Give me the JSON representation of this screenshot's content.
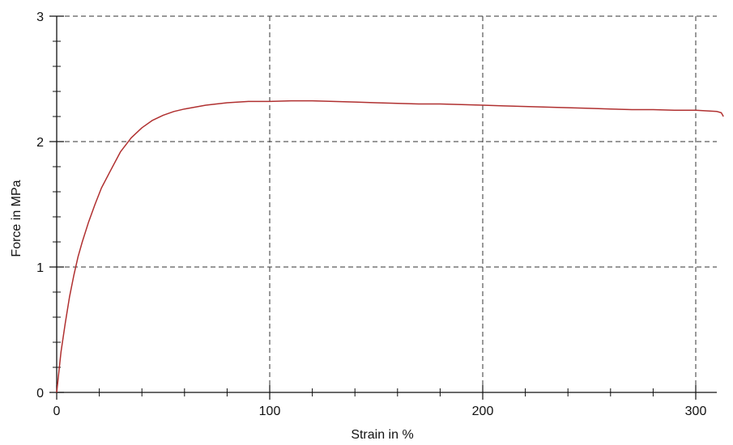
{
  "chart_data": {
    "type": "line",
    "title": "",
    "xlabel": "Strain in %",
    "ylabel": "Force in MPa",
    "xlim": [
      0,
      315
    ],
    "ylim": [
      0,
      3
    ],
    "x_ticks": [
      0,
      100,
      200,
      300
    ],
    "y_ticks": [
      0,
      1,
      2,
      3
    ],
    "x_tick_labels": [
      "0",
      "100",
      "200",
      "300"
    ],
    "y_tick_labels": [
      "0",
      "1",
      "2",
      "3"
    ],
    "x_minor_step": 20,
    "y_minor_step": 0.2,
    "grid": true,
    "grid_style": "dashed",
    "series": [
      {
        "color": "#b03030",
        "x": [
          0,
          2,
          4,
          6,
          8,
          10,
          12,
          15,
          18,
          21,
          25,
          30,
          35,
          40,
          45,
          50,
          55,
          60,
          70,
          80,
          90,
          100,
          110,
          120,
          130,
          140,
          150,
          160,
          170,
          180,
          190,
          200,
          210,
          220,
          230,
          240,
          250,
          260,
          270,
          280,
          290,
          300,
          305,
          310,
          312,
          313
        ],
        "y": [
          0,
          0.32,
          0.55,
          0.76,
          0.93,
          1.08,
          1.2,
          1.36,
          1.5,
          1.63,
          1.76,
          1.92,
          2.03,
          2.11,
          2.17,
          2.21,
          2.24,
          2.26,
          2.29,
          2.31,
          2.32,
          2.32,
          2.325,
          2.325,
          2.32,
          2.315,
          2.31,
          2.305,
          2.3,
          2.3,
          2.295,
          2.29,
          2.285,
          2.28,
          2.275,
          2.27,
          2.265,
          2.26,
          2.255,
          2.255,
          2.25,
          2.25,
          2.245,
          2.24,
          2.23,
          2.2
        ]
      }
    ]
  }
}
